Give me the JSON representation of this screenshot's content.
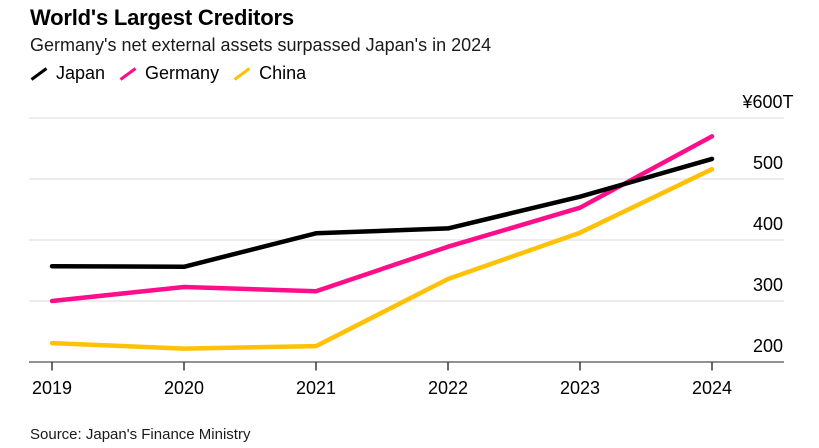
{
  "header": {
    "title": "World's Largest Creditors",
    "subtitle": "Germany's net external assets surpassed Japan's in 2024"
  },
  "source": "Source: Japan's Finance Ministry",
  "icons": {
    "legend_swatch": "diagonal-line-slash"
  },
  "colors": {
    "background": "#ffffff",
    "text": "#000000",
    "gridline": "#e2e2e2",
    "axis_line": "#6f6f6f",
    "tick": "#383838",
    "japan": "#000000",
    "germany": "#ff0d8a",
    "china": "#ffc105"
  },
  "chart_data": {
    "type": "line",
    "x": [
      "2019",
      "2020",
      "2021",
      "2022",
      "2023",
      "2024"
    ],
    "series": [
      {
        "name": "Japan",
        "color": "#000000",
        "values": [
          357,
          356,
          411,
          419,
          471,
          533
        ]
      },
      {
        "name": "Germany",
        "color": "#ff0d8a",
        "values": [
          300,
          323,
          316,
          389,
          453,
          570
        ]
      },
      {
        "name": "China",
        "color": "#ffc105",
        "values": [
          231,
          222,
          226,
          336,
          412,
          516
        ]
      }
    ],
    "ylabel_unit": "trillion yen",
    "ylim": [
      200,
      600
    ],
    "yticks": [
      200,
      300,
      400,
      500,
      600
    ],
    "ytick_labels": [
      "200",
      "300",
      "400",
      "500",
      "¥600T"
    ],
    "grid": "horizontal",
    "legend_position": "top-left",
    "y_axis_side": "right"
  }
}
